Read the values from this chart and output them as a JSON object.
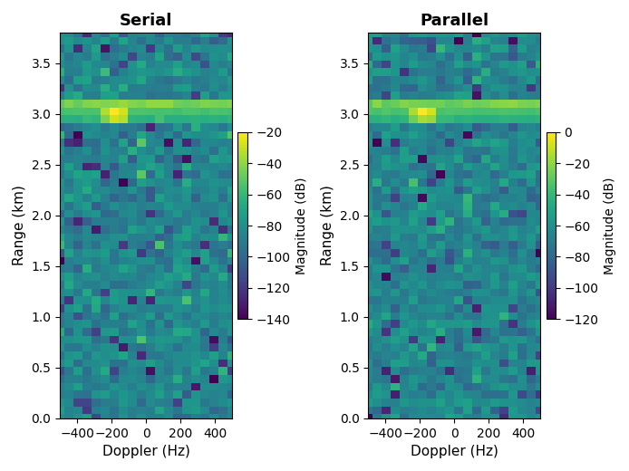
{
  "title1": "Serial",
  "title2": "Parallel",
  "xlabel": "Doppler (Hz)",
  "ylabel": "Range (km)",
  "colorbar_label": "Magnitude (dB)",
  "doppler_min": -500,
  "doppler_max": 500,
  "range_min": 0.0,
  "range_max": 3.8,
  "n_doppler": 20,
  "n_range": 50,
  "target_range": 3.05,
  "target_doppler": -175,
  "serial_vmin": -140,
  "serial_vmax": -20,
  "parallel_vmin": -120,
  "parallel_vmax": 0,
  "noise_mean_serial": -85,
  "noise_std_serial": 8,
  "noise_mean_parallel": -65,
  "noise_std_parallel": 8,
  "signal_peak_serial": -20,
  "signal_peak_parallel": 0,
  "colormap": "viridis",
  "seed": 42,
  "figsize": [
    6.94,
    5.2
  ],
  "dpi": 100
}
